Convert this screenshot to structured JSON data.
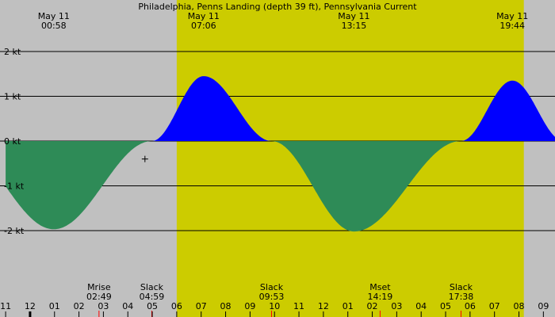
{
  "chart_data": {
    "type": "area",
    "title": "Philadelphia, Penns Landing (depth 39 ft), Pennsylvania Current",
    "y_unit": "kt",
    "ylim": [
      -3.2,
      3.2
    ],
    "y_ticks": [
      {
        "value": 2,
        "label": "2 kt"
      },
      {
        "value": 1,
        "label": "1 kt"
      },
      {
        "value": 0,
        "label": "0 kt"
      },
      {
        "value": -1,
        "label": "-1 kt"
      },
      {
        "value": -2,
        "label": "-2 kt"
      }
    ],
    "xlim_hours": [
      23.0,
      45.7
    ],
    "daylight_hours": [
      30.0,
      44.2
    ],
    "x_tick_labels": [
      "11",
      "12",
      "01",
      "02",
      "03",
      "04",
      "05",
      "06",
      "07",
      "08",
      "09",
      "10",
      "11",
      "12",
      "01",
      "02",
      "03",
      "04",
      "05",
      "06",
      "07",
      "08",
      "09"
    ],
    "extremes": [
      {
        "date": "May 11",
        "time": "00:58",
        "hour": 24.97,
        "value": -1.97
      },
      {
        "date": "May 11",
        "time": "07:06",
        "hour": 31.1,
        "value": 1.45
      },
      {
        "date": "May 11",
        "time": "13:15",
        "hour": 37.25,
        "value": -2.02
      },
      {
        "date": "May 11",
        "time": "19:44",
        "hour": 43.73,
        "value": 1.35
      }
    ],
    "slack_hours": [
      28.98,
      33.88,
      41.63
    ],
    "events": [
      {
        "name": "Mrise",
        "time": "02:49",
        "hour": 26.82
      },
      {
        "name": "Slack",
        "time": "04:59",
        "hour": 28.98
      },
      {
        "name": "Slack",
        "time": "09:53",
        "hour": 33.88
      },
      {
        "name": "Mset",
        "time": "14:19",
        "hour": 38.32
      },
      {
        "name": "Slack",
        "time": "17:38",
        "hour": 41.63
      }
    ],
    "now_marker": {
      "hour": 28.7,
      "value": -0.4
    },
    "colors": {
      "night": "#c0c0c0",
      "day": "#cccc00",
      "flood": "#0000ff",
      "ebb": "#2e8b57",
      "grid": "#000000",
      "event_tick": "#ff0000"
    }
  }
}
